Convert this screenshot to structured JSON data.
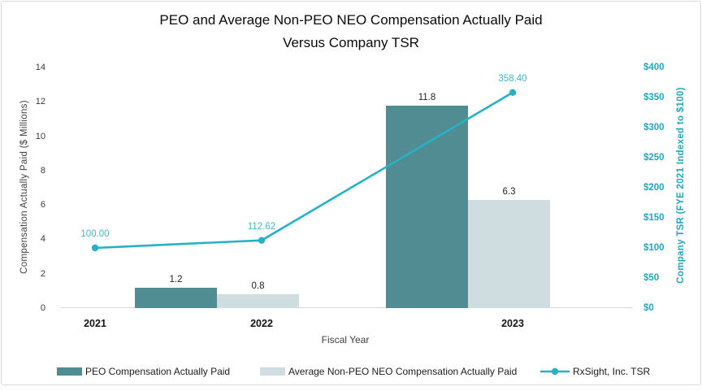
{
  "window": {
    "background": "#ffffff",
    "border_color": "#d8dbde"
  },
  "title": {
    "line1": "PEO and Average Non-PEO NEO Compensation Actually Paid",
    "line2": "Versus Company TSR"
  },
  "axes": {
    "left": {
      "title": "Compensation Actually Paid ($ Millions)",
      "ticks": [
        {
          "v": 0,
          "label": "0"
        },
        {
          "v": 2,
          "label": "2"
        },
        {
          "v": 4,
          "label": "4"
        },
        {
          "v": 6,
          "label": "6"
        },
        {
          "v": 8,
          "label": "8"
        },
        {
          "v": 10,
          "label": "10"
        },
        {
          "v": 12,
          "label": "12"
        },
        {
          "v": 14,
          "label": "14"
        }
      ]
    },
    "right": {
      "title": "Company TSR (FYE 2021 Indexed to $100)",
      "ticks": [
        {
          "v": 0,
          "label": "$0"
        },
        {
          "v": 50,
          "label": "$50"
        },
        {
          "v": 100,
          "label": "$100"
        },
        {
          "v": 150,
          "label": "$150"
        },
        {
          "v": 200,
          "label": "$200"
        },
        {
          "v": 250,
          "label": "$250"
        },
        {
          "v": 300,
          "label": "$300"
        },
        {
          "v": 350,
          "label": "$350"
        },
        {
          "v": 400,
          "label": "$400"
        }
      ]
    },
    "x": {
      "title": "Fiscal Year"
    }
  },
  "chart_data": {
    "type": "bar+line combo",
    "categories": [
      "2021",
      "2022",
      "2023"
    ],
    "series": [
      {
        "name": "PEO Compensation Actually Paid",
        "type": "bar",
        "axis": "left",
        "color": "#508C92",
        "values": [
          0,
          1.2,
          11.8
        ],
        "data_labels": [
          "",
          "1.2",
          "11.8"
        ]
      },
      {
        "name": "Average Non-PEO NEO Compensation Actually Paid",
        "type": "bar",
        "axis": "left",
        "color": "#CFDCE0",
        "values": [
          0,
          0.8,
          6.3
        ],
        "data_labels": [
          "",
          "0.8",
          "6.3"
        ]
      },
      {
        "name": "RxSight, Inc. TSR",
        "type": "line",
        "axis": "right",
        "color": "#26B1C6",
        "label_color": "#43B4C9",
        "values": [
          100.0,
          112.62,
          358.4
        ],
        "data_labels": [
          "100.00",
          "112.62",
          "358.40"
        ]
      }
    ],
    "title": "PEO and Average Non-PEO NEO Compensation Actually Paid Versus Company TSR",
    "xlabel": "Fiscal Year",
    "ylabel_left": "Compensation Actually Paid ($ Millions)",
    "ylabel_right": "Company TSR (FYE 2021 Indexed to $100)",
    "left_ylim": [
      0,
      14
    ],
    "right_ylim": [
      0,
      400
    ],
    "gridlines": false,
    "legend_position": "bottom"
  }
}
